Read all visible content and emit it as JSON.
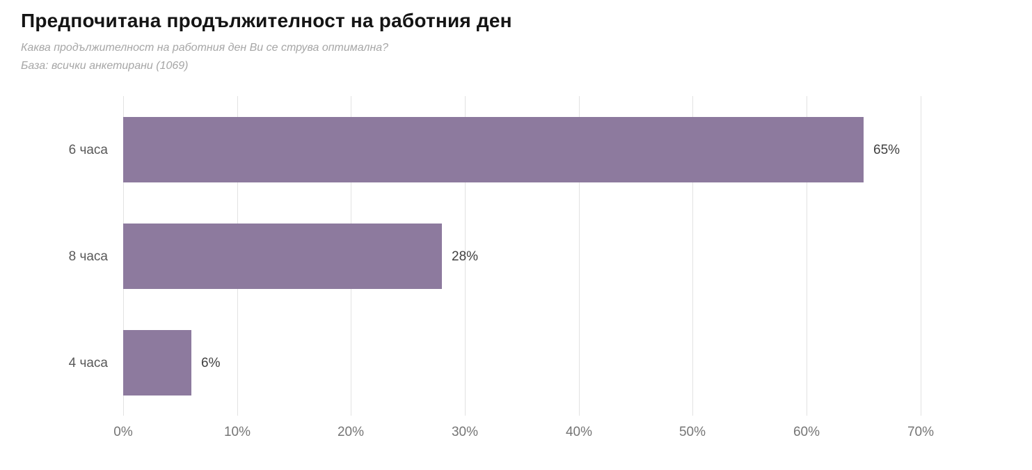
{
  "header": {
    "title": "Предпочитана продължителност на работния ден",
    "subtitle_question": "Каква продължителност на работния ден Ви се струва оптимална?",
    "subtitle_base": "База: всички анкетирани (1069)"
  },
  "chart_data": {
    "type": "bar",
    "orientation": "horizontal",
    "title": "Предпочитана продължителност на работния ден",
    "categories": [
      "6 часа",
      "8 часа",
      "4 часа"
    ],
    "values": [
      65,
      28,
      6
    ],
    "value_labels": [
      "65%",
      "28%",
      "6%"
    ],
    "x_tick_values": [
      0,
      10,
      20,
      30,
      40,
      50,
      60,
      70
    ],
    "x_tick_labels": [
      "0%",
      "10%",
      "20%",
      "30%",
      "40%",
      "50%",
      "60%",
      "70%"
    ],
    "xlim": [
      0,
      78.4
    ],
    "grid": true,
    "legend": false,
    "bar_color": "#8d7a9e",
    "gridline_color": "#e2e2e2",
    "label_color": "#595959",
    "value_label_color": "#404040",
    "tick_label_color": "#757575"
  }
}
